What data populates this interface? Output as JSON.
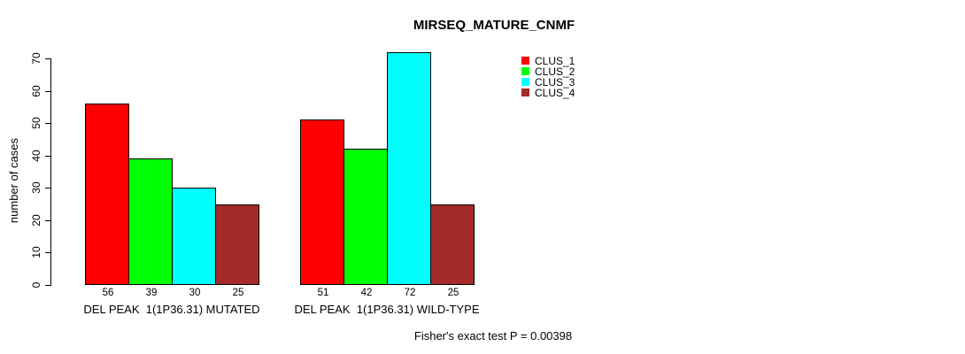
{
  "chart_data": {
    "type": "bar",
    "title": "MIRSEQ_MATURE_CNMF",
    "ylabel": "number of cases",
    "xlabel": "",
    "ylim": [
      0,
      70
    ],
    "yticks": [
      0,
      10,
      20,
      30,
      40,
      50,
      60,
      70
    ],
    "grid": false,
    "legend_position": "top-right",
    "categories": [
      "DEL PEAK  1(1P36.31) MUTATED",
      "DEL PEAK  1(1P36.31) WILD-TYPE"
    ],
    "series": [
      {
        "name": "CLUS_1",
        "color": "#ff0000",
        "values": [
          56,
          51
        ]
      },
      {
        "name": "CLUS_2",
        "color": "#00ff00",
        "values": [
          39,
          42
        ]
      },
      {
        "name": "CLUS_3",
        "color": "#00ffff",
        "values": [
          30,
          72
        ]
      },
      {
        "name": "CLUS_4",
        "color": "#a52a2a",
        "values": [
          25,
          25
        ]
      }
    ],
    "bar_value_labels": [
      [
        56,
        39,
        30,
        25
      ],
      [
        51,
        42,
        72,
        25
      ]
    ],
    "annotation": "Fisher's exact test P = 0.00398",
    "colors": {
      "background": "#ffffff",
      "bar_border": "#000000",
      "text": "#000000"
    }
  }
}
